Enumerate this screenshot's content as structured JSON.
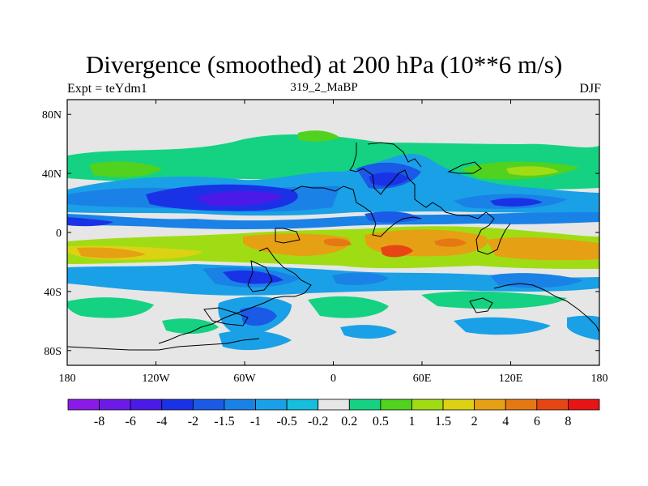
{
  "title": "Divergence (smoothed) at 200 hPa (10**6 m/s)",
  "left_label": "Expt = teYdm1",
  "center_label": "319_2_MaBP",
  "right_label": "DJF",
  "map": {
    "lon_ticks": [
      "180",
      "120W",
      "60W",
      "0",
      "60E",
      "120E",
      "180"
    ],
    "lat_ticks": [
      "80N",
      "40N",
      "0",
      "40S",
      "80S"
    ],
    "lat_tick_values": [
      80,
      40,
      0,
      -40,
      -80
    ],
    "lon_range": [
      -180,
      180
    ],
    "lat_range": [
      -90,
      90
    ]
  },
  "colorbar": {
    "colors": [
      "#8c1ae6",
      "#6e1ae6",
      "#4b1ae6",
      "#1a32e6",
      "#1a5ae6",
      "#1a82e6",
      "#1aa0e6",
      "#14bedc",
      "#e6e6e6",
      "#14d282",
      "#50d21e",
      "#a0dc14",
      "#dcd214",
      "#e6a014",
      "#e67814",
      "#e64614",
      "#e61414"
    ],
    "labels": [
      "-8",
      "-6",
      "-4",
      "-2",
      "-1.5",
      "-1",
      "-0.5",
      "-0.2",
      "0.2",
      "0.5",
      "1",
      "1.5",
      "2",
      "4",
      "6",
      "8"
    ]
  }
}
